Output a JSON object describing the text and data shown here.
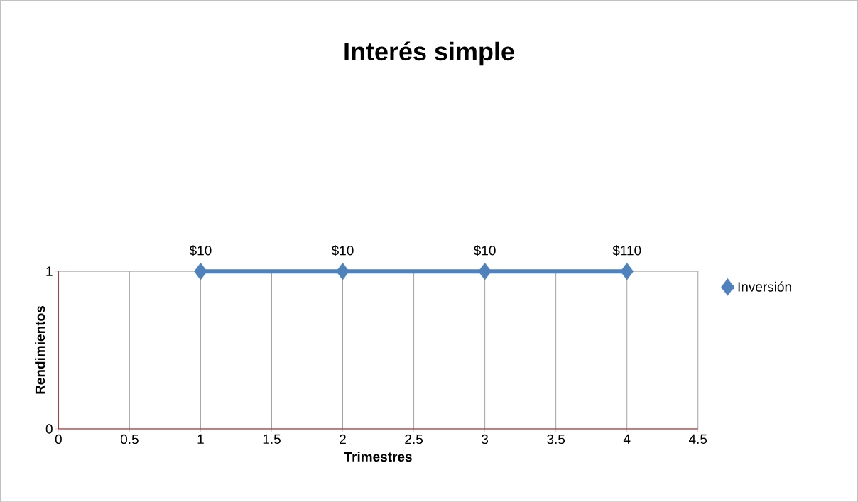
{
  "chart_data": {
    "type": "line",
    "title": "Interés simple",
    "xlabel": "Trimestres",
    "ylabel": "Rendimientos",
    "x": [
      1,
      2,
      3,
      4
    ],
    "series": [
      {
        "name": "Inversión",
        "color": "#4f81bd",
        "values": [
          1,
          1,
          1,
          1
        ]
      }
    ],
    "annotations": [
      {
        "text": "$10",
        "x": 1,
        "y": 1
      },
      {
        "text": "$10",
        "x": 2,
        "y": 1
      },
      {
        "text": "$10",
        "x": 3,
        "y": 1
      },
      {
        "text": "$110",
        "x": 4,
        "y": 1
      }
    ],
    "xlim": [
      0,
      4.5
    ],
    "ylim": [
      0,
      1
    ],
    "xticks": [
      0,
      0.5,
      1,
      1.5,
      2,
      2.5,
      3,
      3.5,
      4,
      4.5
    ],
    "yticks": [
      0,
      1
    ],
    "grid": true,
    "legend": "right",
    "marker": "diamond"
  }
}
